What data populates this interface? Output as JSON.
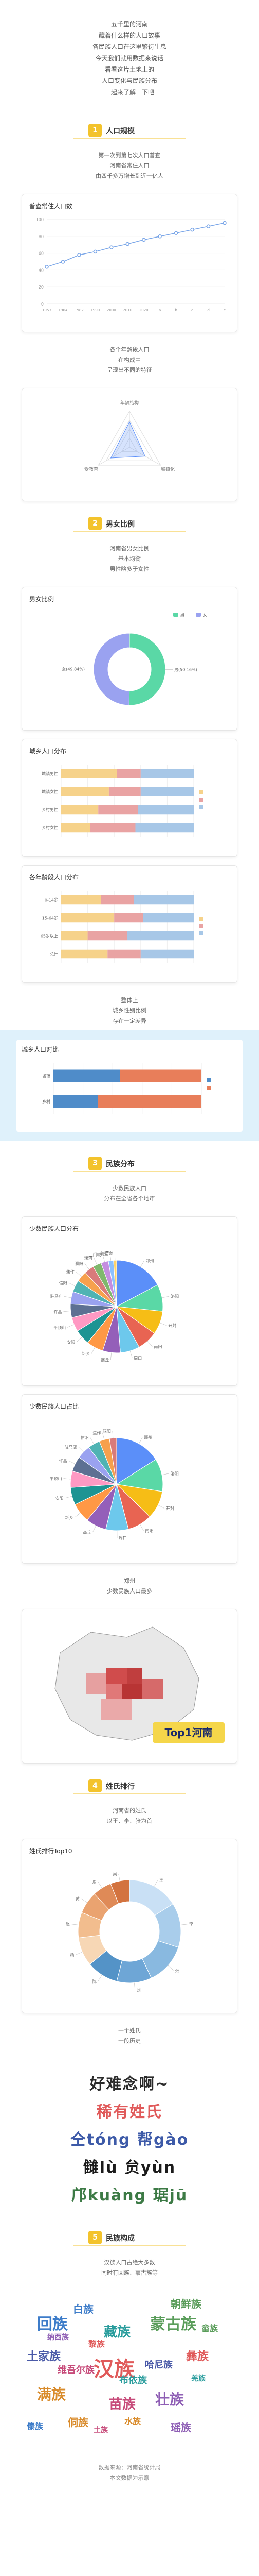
{
  "intro": {
    "lines": [
      "五千里的河南",
      "藏着什么样的人口故事",
      "各民族人口在这里繁衍生息",
      "今天我们就用数据来说话",
      "看看这片土地上的",
      "人口变化与民族分布",
      "一起来了解一下吧"
    ]
  },
  "section1": {
    "num": "1",
    "title": "人口规模",
    "caption_top": [
      "第一次到第七次人口普查",
      "河南省常住人口",
      "由四千多万增长到近一亿人"
    ],
    "caption_bottom": [
      "各个年龄段人口",
      "在构成中",
      "呈现出不同的特征"
    ]
  },
  "section2": {
    "num": "2",
    "title": "男女比例",
    "caption_top": [
      "河南省男女比例",
      "基本均衡",
      "男性略多于女性"
    ],
    "caption_bottom": [
      "整体上",
      "城乡性别比例",
      "存在一定差异"
    ]
  },
  "section3": {
    "num": "3",
    "title": "民族分布",
    "caption_top": [
      "少数民族人口",
      "分布在全省各个地市"
    ],
    "caption_bottom": [
      "郑州",
      "少数民族人口最多"
    ],
    "map_banner": "Top1河南"
  },
  "section4": {
    "num": "4",
    "title": "姓氏排行",
    "caption_top": [
      "河南省的姓氏",
      "以王、李、张为首"
    ],
    "caption_bottom": [
      "一个姓氏",
      "一段历史"
    ]
  },
  "section5": {
    "num": "5",
    "title": "民族构成",
    "caption_top": [
      "汉族人口占绝大多数",
      "同时有回族、蒙古族等"
    ]
  },
  "rare_surnames": {
    "line1": "好难念啊~",
    "line2": "稀有姓氏",
    "line3": "仝tóng  帮gào",
    "line4": "雠lù  贠yùn",
    "line5": "邝kuàng  琚jū"
  },
  "footer": {
    "lines": [
      "数据来源：河南省统计局",
      "本文数据为示意"
    ]
  },
  "colors": {
    "accent": "#f3c32c",
    "blue": "#5b8ff9",
    "green": "#5ad8a6",
    "purple": "#9aa2f0",
    "teal": "#4fb3b3",
    "orange": "#f6a04d"
  },
  "chart_data": [
    {
      "type": "line",
      "title": "普查常住人口数",
      "x": [
        "1953",
        "1964",
        "1982",
        "1990",
        "2000",
        "2010",
        "2020",
        "a",
        "b",
        "c",
        "d",
        "e"
      ],
      "values": [
        44,
        50,
        58,
        62,
        67,
        71,
        76,
        80,
        84,
        88,
        92,
        96
      ],
      "ylim": [
        0,
        100
      ]
    },
    {
      "type": "radar",
      "title": "",
      "axes": [
        "年龄结构",
        "城镇化",
        "受教育"
      ],
      "values": [
        0.7,
        0.5,
        0.6
      ]
    },
    {
      "type": "pie",
      "title": "男女比例",
      "series": [
        {
          "name": "男",
          "value": 50.16
        },
        {
          "name": "女",
          "value": 49.84
        }
      ],
      "labels": [
        "男(50.16%)",
        "女(49.84%)"
      ]
    },
    {
      "type": "bar",
      "title": "城乡人口分布",
      "categories": [
        "城镇男性",
        "城镇女性",
        "乡村男性",
        "乡村女性"
      ],
      "series": [
        {
          "name": "a",
          "values": [
            42,
            36,
            28,
            22
          ]
        },
        {
          "name": "b",
          "values": [
            18,
            24,
            30,
            34
          ]
        },
        {
          "name": "c",
          "values": [
            40,
            40,
            42,
            44
          ]
        }
      ],
      "xlim": [
        0,
        100
      ]
    },
    {
      "type": "bar",
      "title": "各年龄段人口分布",
      "categories": [
        "0-14岁",
        "15-64岁",
        "65岁以上",
        "总计"
      ],
      "series": [
        {
          "name": "a",
          "values": [
            30,
            40,
            20,
            35
          ]
        },
        {
          "name": "b",
          "values": [
            25,
            22,
            30,
            25
          ]
        },
        {
          "name": "c",
          "values": [
            45,
            38,
            50,
            40
          ]
        }
      ],
      "xlim": [
        0,
        100
      ]
    },
    {
      "type": "bar",
      "title": "城乡人口对比",
      "categories": [
        "城镇",
        "乡村"
      ],
      "series": [
        {
          "name": "a",
          "values": [
            45,
            30
          ]
        },
        {
          "name": "b",
          "values": [
            55,
            70
          ]
        }
      ],
      "xlim": [
        0,
        100
      ]
    },
    {
      "type": "pie",
      "title": "少数民族人口分布",
      "labels": [
        "郑州",
        "洛阳",
        "开封",
        "南阳",
        "周口",
        "商丘",
        "新乡",
        "安阳",
        "平顶山",
        "许昌",
        "驻马店",
        "信阳",
        "焦作",
        "濮阳",
        "漯河",
        "三门峡",
        "鹤壁",
        "济源"
      ],
      "values": [
        17.3,
        9.4,
        8.2,
        7.1,
        6.8,
        6.2,
        5.9,
        5.4,
        5.0,
        4.7,
        4.4,
        4.1,
        3.8,
        3.4,
        3.0,
        2.6,
        1.8,
        1.1
      ]
    },
    {
      "type": "pie",
      "title": "少数民族人口占比",
      "labels": [
        "郑州",
        "洛阳",
        "开封",
        "南阳",
        "周口",
        "商丘",
        "新乡",
        "安阳",
        "平顶山",
        "许昌",
        "驻马店",
        "信阳",
        "焦作",
        "濮阳"
      ],
      "values": [
        16.0,
        11.5,
        9.8,
        8.6,
        7.9,
        7.2,
        6.8,
        6.1,
        5.7,
        5.3,
        4.8,
        4.2,
        3.6,
        2.5
      ]
    },
    {
      "type": "pie",
      "title": "姓氏排行Top10",
      "labels": [
        "王",
        "李",
        "张",
        "刘",
        "陈",
        "杨",
        "赵",
        "黄",
        "周",
        "吴"
      ],
      "values": [
        16,
        14,
        13,
        11,
        10,
        9,
        8,
        7,
        6,
        6
      ]
    }
  ],
  "wordcloud": {
    "words": [
      "汉族",
      "回族",
      "蒙古族",
      "满族",
      "壮族",
      "藏族",
      "苗族",
      "土家族",
      "彝族",
      "白族",
      "朝鲜族",
      "侗族",
      "瑶族",
      "布依族",
      "维吾尔族",
      "哈尼族",
      "黎族",
      "傣族",
      "畲族",
      "水族",
      "纳西族",
      "羌族",
      "土族"
    ]
  }
}
